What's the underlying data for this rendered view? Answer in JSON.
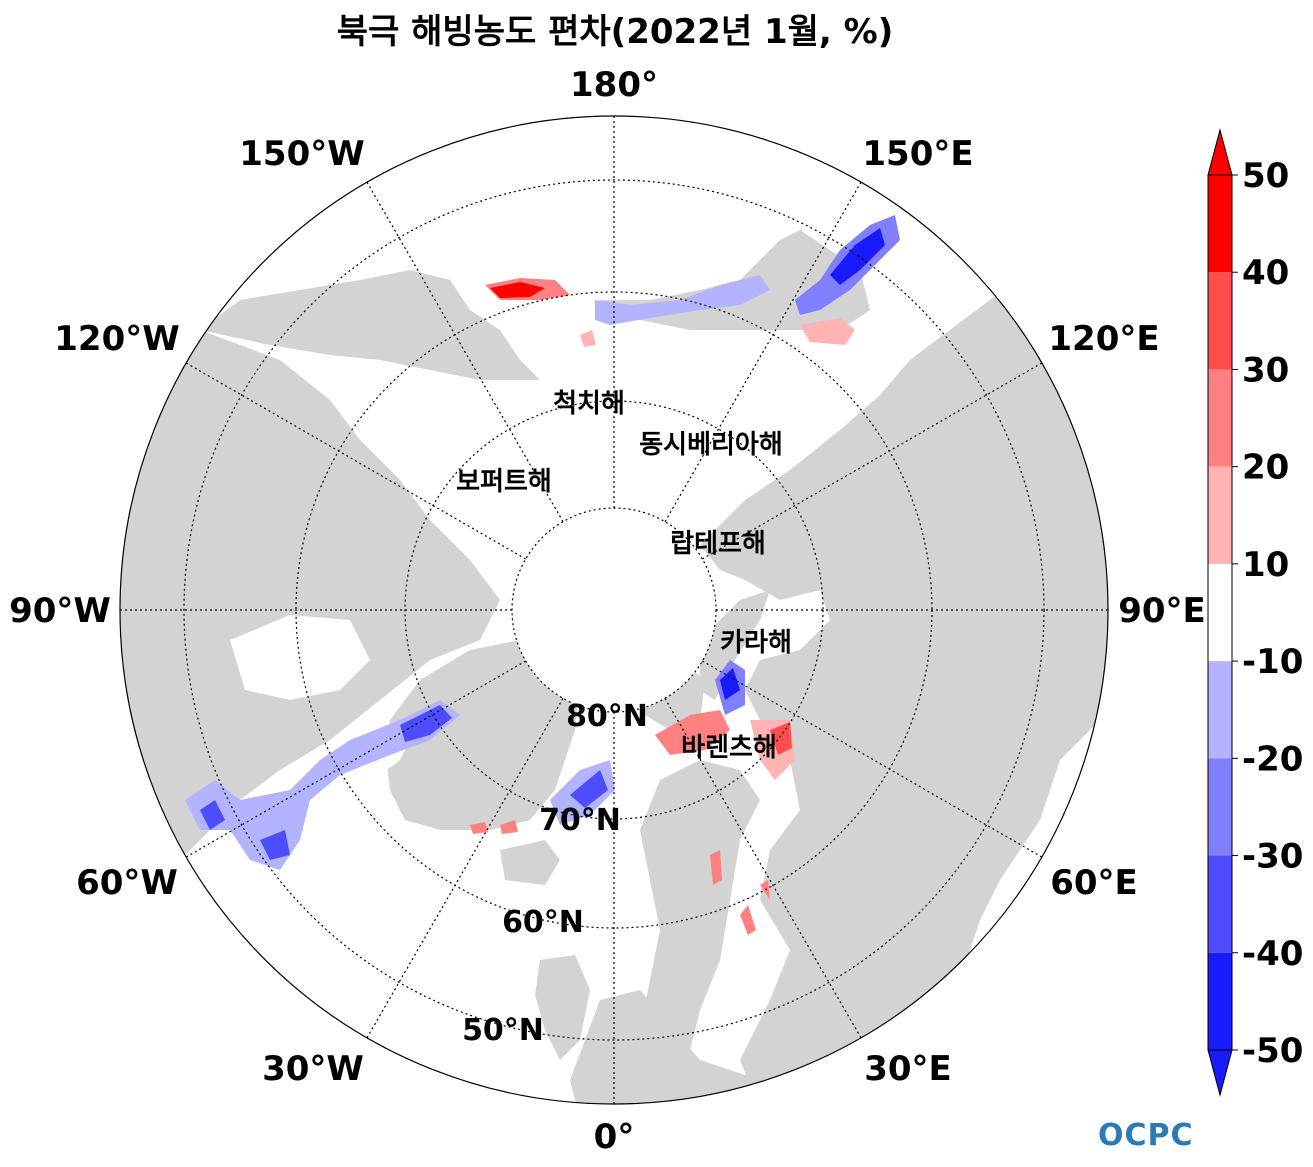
{
  "title": "북극 해빙농도 편차(2022년 1월, %)",
  "longitude_labels": [
    "180°",
    "150°E",
    "120°E",
    "90°E",
    "60°E",
    "30°E",
    "0°",
    "30°W",
    "60°W",
    "90°W",
    "120°W",
    "150°W"
  ],
  "latitude_labels": [
    "80°N",
    "70°N",
    "60°N",
    "50°N"
  ],
  "sea_labels": [
    "척치해",
    "동시베리아해",
    "보퍼트해",
    "랍테프해",
    "카라해",
    "바렌츠해"
  ],
  "colorbar": {
    "levels": [
      50,
      40,
      30,
      20,
      10,
      -10,
      -20,
      -30,
      -40,
      -50
    ],
    "labels": [
      "50",
      "40",
      "30",
      "20",
      "10",
      "-10",
      "-20",
      "-30",
      "-40",
      "-50"
    ],
    "colors": [
      "#ff0000",
      "#ff4d4d",
      "#ff8080",
      "#ffb3b3",
      "#ffffff",
      "#b3b3ff",
      "#8080ff",
      "#4d4dff",
      "#1a1aff"
    ],
    "extend": "both"
  },
  "logo_text": "OCPC",
  "colors": {
    "land": "#d3d3d3",
    "ocean": "#ffffff",
    "grid": "#000000"
  }
}
